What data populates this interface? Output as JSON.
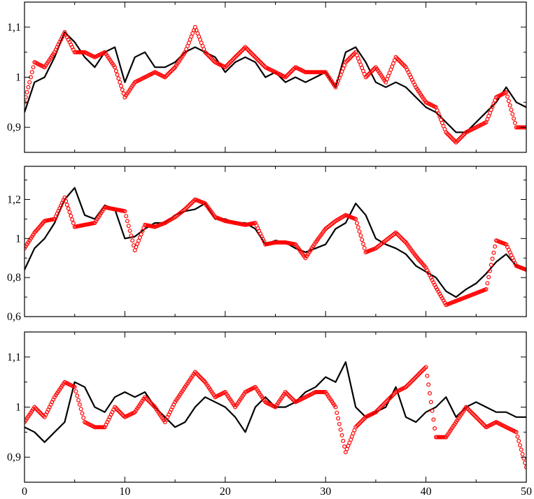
{
  "chart_data": [
    {
      "type": "line",
      "title": "",
      "xlabel": "",
      "ylabel": "",
      "xlim": [
        0,
        50
      ],
      "ylim": [
        0.85,
        1.15
      ],
      "grid": false,
      "xticks": [
        0,
        10,
        20,
        30,
        40,
        50
      ],
      "xtick_labels": [],
      "yticks": [
        0.9,
        1.0,
        1.1
      ],
      "ytick_labels": [
        "0,9",
        "1",
        "1,1"
      ],
      "series": [
        {
          "style": "line",
          "color": "#000000",
          "x": [
            0,
            1,
            2,
            3,
            4,
            5,
            6,
            7,
            8,
            9,
            10,
            11,
            12,
            13,
            14,
            15,
            16,
            17,
            18,
            19,
            20,
            21,
            22,
            23,
            24,
            25,
            26,
            27,
            28,
            29,
            30,
            31,
            32,
            33,
            34,
            35,
            36,
            37,
            38,
            39,
            40,
            41,
            42,
            43,
            44,
            45,
            46,
            47,
            48,
            49,
            50
          ],
          "values": [
            0.93,
            0.99,
            1.0,
            1.04,
            1.09,
            1.07,
            1.04,
            1.02,
            1.05,
            1.06,
            0.99,
            1.04,
            1.05,
            1.02,
            1.02,
            1.03,
            1.05,
            1.06,
            1.05,
            1.04,
            1.01,
            1.03,
            1.04,
            1.03,
            1.0,
            1.01,
            0.99,
            1.0,
            0.99,
            1.0,
            1.01,
            0.98,
            1.05,
            1.06,
            1.03,
            0.99,
            0.98,
            0.99,
            0.98,
            0.96,
            0.94,
            0.93,
            0.91,
            0.89,
            0.89,
            0.91,
            0.93,
            0.95,
            0.98,
            0.95,
            0.94
          ]
        },
        {
          "style": "circles",
          "color": "#ff0000",
          "x": [
            0,
            1,
            2,
            3,
            4,
            5,
            6,
            7,
            8,
            9,
            10,
            11,
            12,
            13,
            14,
            15,
            16,
            17,
            18,
            19,
            20,
            21,
            22,
            23,
            24,
            25,
            26,
            27,
            28,
            29,
            30,
            31,
            32,
            33,
            34,
            35,
            36,
            37,
            38,
            39,
            40,
            41,
            42,
            43,
            44,
            45,
            46,
            47,
            48,
            49,
            50
          ],
          "values": [
            0.95,
            1.03,
            1.02,
            1.05,
            1.09,
            1.05,
            1.05,
            1.04,
            1.05,
            1.02,
            0.96,
            0.99,
            1.0,
            1.01,
            1.0,
            1.02,
            1.05,
            1.1,
            1.05,
            1.03,
            1.02,
            1.04,
            1.06,
            1.04,
            1.02,
            1.01,
            1.0,
            1.02,
            1.01,
            1.01,
            1.01,
            0.98,
            1.03,
            1.05,
            1.0,
            1.02,
            0.99,
            1.04,
            1.02,
            0.98,
            0.95,
            0.94,
            0.89,
            0.87,
            0.89,
            0.9,
            0.91,
            0.96,
            0.97,
            0.9,
            0.9
          ]
        }
      ]
    },
    {
      "type": "line",
      "title": "",
      "xlabel": "",
      "ylabel": "",
      "xlim": [
        0,
        50
      ],
      "ylim": [
        0.6,
        1.37
      ],
      "grid": false,
      "xticks": [
        0,
        10,
        20,
        30,
        40,
        50
      ],
      "xtick_labels": [],
      "yticks": [
        0.6,
        0.8,
        1.0,
        1.2
      ],
      "ytick_labels": [
        "0,6",
        "0,8",
        "1",
        "1,2"
      ],
      "series": [
        {
          "style": "line",
          "color": "#000000",
          "x": [
            0,
            1,
            2,
            3,
            4,
            5,
            6,
            7,
            8,
            9,
            10,
            11,
            12,
            13,
            14,
            15,
            16,
            17,
            18,
            19,
            20,
            21,
            22,
            23,
            24,
            25,
            26,
            27,
            28,
            29,
            30,
            31,
            32,
            33,
            34,
            35,
            36,
            37,
            38,
            39,
            40,
            41,
            42,
            43,
            44,
            45,
            46,
            47,
            48,
            49,
            50
          ],
          "values": [
            0.84,
            0.95,
            1.0,
            1.08,
            1.2,
            1.26,
            1.12,
            1.1,
            1.17,
            1.15,
            1.0,
            1.01,
            1.05,
            1.08,
            1.08,
            1.12,
            1.14,
            1.15,
            1.18,
            1.1,
            1.1,
            1.08,
            1.08,
            1.05,
            0.97,
            0.99,
            0.98,
            0.95,
            0.93,
            0.95,
            0.97,
            1.05,
            1.08,
            1.18,
            1.12,
            1.0,
            0.97,
            0.95,
            0.92,
            0.86,
            0.83,
            0.8,
            0.73,
            0.7,
            0.74,
            0.77,
            0.82,
            0.88,
            0.92,
            0.86,
            0.84
          ]
        },
        {
          "style": "circles",
          "color": "#ff0000",
          "x": [
            0,
            1,
            2,
            3,
            4,
            5,
            6,
            7,
            8,
            9,
            10,
            11,
            12,
            13,
            14,
            15,
            16,
            17,
            18,
            19,
            20,
            21,
            22,
            23,
            24,
            25,
            26,
            27,
            28,
            29,
            30,
            31,
            32,
            33,
            34,
            35,
            36,
            37,
            38,
            39,
            40,
            41,
            42,
            43,
            44,
            45,
            46,
            47,
            48,
            49,
            50
          ],
          "values": [
            0.95,
            1.03,
            1.09,
            1.1,
            1.21,
            1.06,
            1.07,
            1.08,
            1.16,
            1.15,
            1.14,
            0.94,
            1.07,
            1.06,
            1.08,
            1.11,
            1.15,
            1.2,
            1.18,
            1.11,
            1.09,
            1.08,
            1.07,
            1.08,
            0.97,
            0.98,
            0.98,
            0.97,
            0.9,
            0.98,
            1.05,
            1.09,
            1.12,
            1.1,
            0.93,
            0.95,
            0.99,
            1.03,
            0.98,
            0.91,
            0.85,
            0.75,
            0.66,
            0.68,
            0.7,
            0.72,
            0.74,
            0.99,
            0.97,
            0.86,
            0.84
          ]
        }
      ]
    },
    {
      "type": "line",
      "title": "",
      "xlabel": "",
      "ylabel": "",
      "xlim": [
        0,
        50
      ],
      "ylim": [
        0.85,
        1.15
      ],
      "grid": false,
      "xticks": [
        0,
        10,
        20,
        30,
        40,
        50
      ],
      "xtick_labels": [
        "0",
        "10",
        "20",
        "30",
        "40",
        "50"
      ],
      "yticks": [
        0.9,
        1.0,
        1.1
      ],
      "ytick_labels": [
        "0,9",
        "1",
        "1,1"
      ],
      "series": [
        {
          "style": "line",
          "color": "#000000",
          "x": [
            0,
            1,
            2,
            3,
            4,
            5,
            6,
            7,
            8,
            9,
            10,
            11,
            12,
            13,
            14,
            15,
            16,
            17,
            18,
            19,
            20,
            21,
            22,
            23,
            24,
            25,
            26,
            27,
            28,
            29,
            30,
            31,
            32,
            33,
            34,
            35,
            36,
            37,
            38,
            39,
            40,
            41,
            42,
            43,
            44,
            45,
            46,
            47,
            48,
            49,
            50
          ],
          "values": [
            0.96,
            0.95,
            0.93,
            0.95,
            0.97,
            1.05,
            1.04,
            1.0,
            0.99,
            1.02,
            1.03,
            1.02,
            1.03,
            1.0,
            0.98,
            0.96,
            0.97,
            1.0,
            1.02,
            1.01,
            1.0,
            0.98,
            0.95,
            1.0,
            1.02,
            1.0,
            1.0,
            1.01,
            1.03,
            1.04,
            1.06,
            1.05,
            1.09,
            1.0,
            0.98,
            0.99,
            1.0,
            1.04,
            0.98,
            0.97,
            0.99,
            1.0,
            1.02,
            0.98,
            1.0,
            1.01,
            1.0,
            0.99,
            0.99,
            0.98,
            0.98
          ]
        },
        {
          "style": "circles",
          "color": "#ff0000",
          "x": [
            0,
            1,
            2,
            3,
            4,
            5,
            6,
            7,
            8,
            9,
            10,
            11,
            12,
            13,
            14,
            15,
            16,
            17,
            18,
            19,
            20,
            21,
            22,
            23,
            24,
            25,
            26,
            27,
            28,
            29,
            30,
            31,
            32,
            33,
            34,
            35,
            36,
            37,
            38,
            39,
            40,
            41,
            42,
            43,
            44,
            45,
            46,
            47,
            48,
            49,
            50
          ],
          "values": [
            0.97,
            1.0,
            0.98,
            1.02,
            1.05,
            1.04,
            0.97,
            0.96,
            0.96,
            1.0,
            0.98,
            0.99,
            1.02,
            1.0,
            0.97,
            1.01,
            1.04,
            1.07,
            1.05,
            1.02,
            1.03,
            1.0,
            1.03,
            1.04,
            1.01,
            1.0,
            1.03,
            1.01,
            1.02,
            1.03,
            1.03,
            1.0,
            0.91,
            0.96,
            0.98,
            0.99,
            1.01,
            1.03,
            1.04,
            1.06,
            1.08,
            0.94,
            0.94,
            0.97,
            1.0,
            0.98,
            0.96,
            0.97,
            0.96,
            0.95,
            0.88
          ]
        }
      ]
    }
  ]
}
